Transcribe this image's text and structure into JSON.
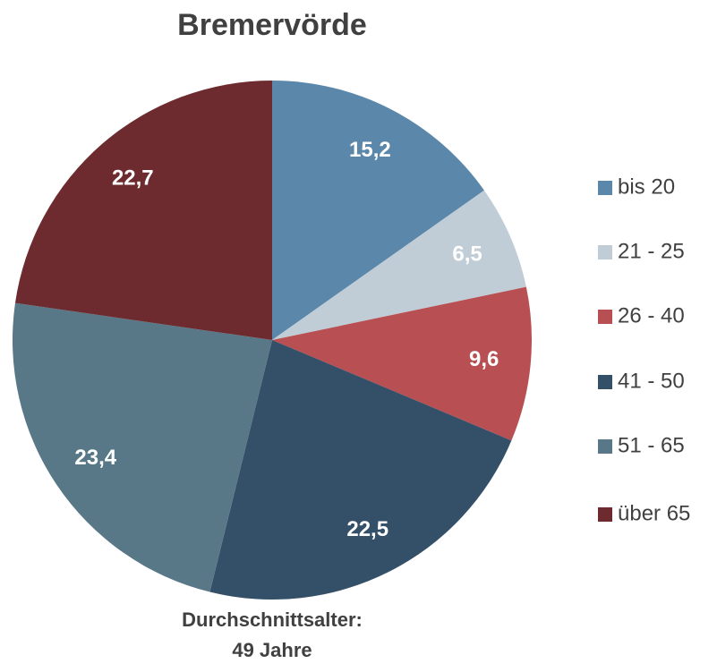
{
  "chart_data": {
    "type": "pie",
    "title": "Bremervörde",
    "categories": [
      "bis 20",
      "21 - 25",
      "26 - 40",
      "41 - 50",
      "51 - 65",
      "über 65"
    ],
    "values": [
      15.2,
      6.5,
      9.6,
      22.5,
      23.4,
      22.7
    ],
    "value_labels": [
      "15,2",
      "6,5",
      "9,6",
      "22,5",
      "23,4",
      "22,7"
    ],
    "colors": [
      "#5b87aa",
      "#c0cdd6",
      "#b84f52",
      "#344f68",
      "#587888",
      "#6e2b2f"
    ],
    "legend": "right",
    "annotations": [
      "Durchschnittsalter:",
      "49 Jahre"
    ]
  }
}
